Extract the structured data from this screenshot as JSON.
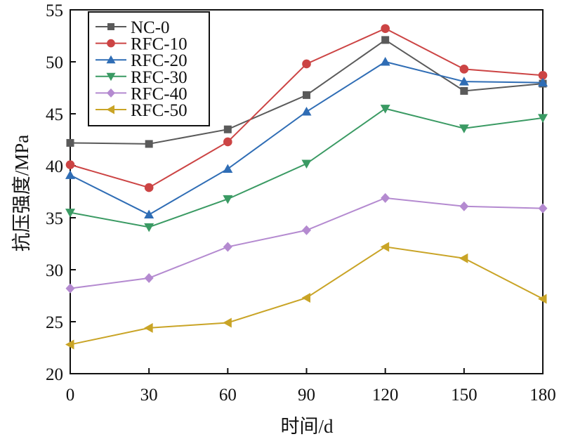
{
  "chart_data": {
    "type": "line",
    "xlabel": "时间/d",
    "ylabel": "抗压强度/MPa",
    "x": [
      0,
      30,
      60,
      90,
      120,
      150,
      180
    ],
    "xticks": [
      "0",
      "30",
      "60",
      "90",
      "120",
      "150",
      "180"
    ],
    "xlim": [
      0,
      180
    ],
    "ylim": [
      20,
      55
    ],
    "yticks": [
      "20",
      "25",
      "30",
      "35",
      "40",
      "45",
      "50",
      "55"
    ],
    "grid": false,
    "legend": "top-left",
    "series": [
      {
        "name": "NC-0",
        "color": "#5a5a5a",
        "marker": "square",
        "values": [
          42.2,
          42.1,
          43.5,
          46.8,
          52.1,
          47.2,
          47.9
        ]
      },
      {
        "name": "RFC-10",
        "color": "#cc4444",
        "marker": "circle",
        "values": [
          40.1,
          37.9,
          42.3,
          49.8,
          53.2,
          49.3,
          48.7
        ]
      },
      {
        "name": "RFC-20",
        "color": "#2f6db5",
        "marker": "triangle-up",
        "values": [
          39.1,
          35.3,
          39.7,
          45.2,
          50.0,
          48.1,
          48.0
        ]
      },
      {
        "name": "RFC-30",
        "color": "#3a9a63",
        "marker": "triangle-down",
        "values": [
          35.5,
          34.1,
          36.8,
          40.2,
          45.5,
          43.6,
          44.6
        ]
      },
      {
        "name": "RFC-40",
        "color": "#b48ad0",
        "marker": "diamond",
        "values": [
          28.2,
          29.2,
          32.2,
          33.8,
          36.9,
          36.1,
          35.9
        ]
      },
      {
        "name": "RFC-50",
        "color": "#c9a426",
        "marker": "triangle-left",
        "values": [
          22.8,
          24.4,
          24.9,
          27.3,
          32.2,
          31.1,
          27.2
        ]
      }
    ]
  }
}
